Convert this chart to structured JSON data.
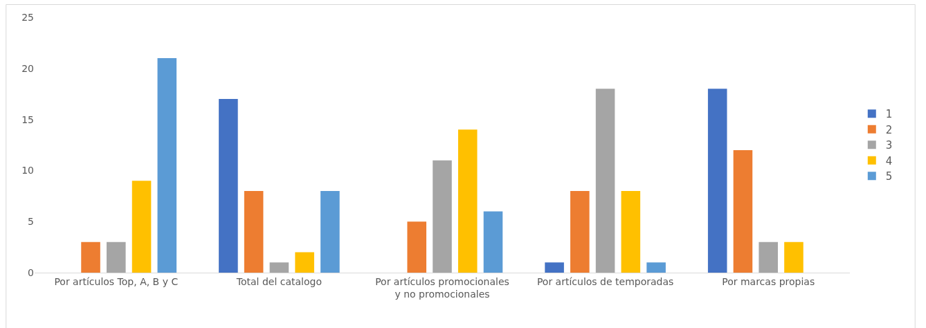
{
  "chart_data": {
    "type": "bar",
    "categories": [
      "Por artículos Top, A, B y C",
      "Total del catalogo",
      "Por artículos promocionales y no promocionales",
      "Por artículos de temporadas",
      "Por marcas propias"
    ],
    "series": [
      {
        "name": "1",
        "color": "#4472c4",
        "values": [
          0,
          17,
          0,
          1,
          18
        ]
      },
      {
        "name": "2",
        "color": "#ed7d31",
        "values": [
          3,
          8,
          5,
          8,
          12
        ]
      },
      {
        "name": "3",
        "color": "#a5a5a5",
        "values": [
          3,
          1,
          11,
          18,
          3
        ]
      },
      {
        "name": "4",
        "color": "#ffc000",
        "values": [
          9,
          2,
          14,
          8,
          3
        ]
      },
      {
        "name": "5",
        "color": "#5b9bd5",
        "values": [
          21,
          8,
          6,
          1,
          0
        ]
      }
    ],
    "ylim": [
      0,
      25
    ],
    "yticks": [
      0,
      5,
      10,
      15,
      20,
      25
    ],
    "legend": "right"
  }
}
